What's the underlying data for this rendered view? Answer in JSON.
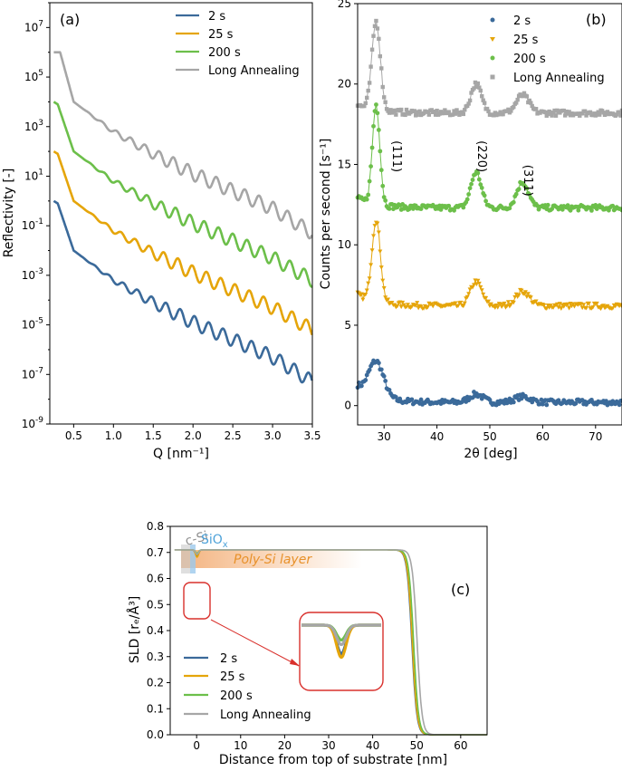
{
  "colors": {
    "s2": "#3b6a9a",
    "s25": "#e5a50a",
    "s200": "#6cbf4a",
    "long": "#a6a6a6",
    "cSi": "#8f8f8f",
    "SiOx": "#4ea2d9",
    "poly": "#f2a76a",
    "zoom": "#d9302c"
  },
  "chart_data": [
    {
      "id": "a",
      "type": "line",
      "panel_label": "(a)",
      "xlabel": "Q [nm⁻¹]",
      "ylabel": "Reflectivity [-]",
      "xlim": [
        0.2,
        3.5
      ],
      "ylim_log10": [
        -9,
        8
      ],
      "yscale": "log",
      "x_ticks": [
        "0.5",
        "1.0",
        "1.5",
        "2.0",
        "2.5",
        "3.0",
        "3.5"
      ],
      "y_tick_labels": [
        {
          "base": "10",
          "exp": "-9"
        },
        {
          "base": "10",
          "exp": "-7"
        },
        {
          "base": "10",
          "exp": "-5"
        },
        {
          "base": "10",
          "exp": "-3"
        },
        {
          "base": "10",
          "exp": "-1"
        },
        {
          "base": "10",
          "exp": "1"
        },
        {
          "base": "10",
          "exp": "3"
        },
        {
          "base": "10",
          "exp": "5"
        },
        {
          "base": "10",
          "exp": "7"
        }
      ],
      "legend": [
        "2 s",
        "25 s",
        "200 s",
        "Long Annealing"
      ],
      "series": [
        {
          "name": "2 s",
          "x": [
            0.25,
            0.3,
            0.5,
            1.0,
            1.5,
            2.0,
            2.5,
            3.0,
            3.5
          ],
          "log10_y": [
            0,
            -0.1,
            -2.0,
            -3.2,
            -4.1,
            -4.9,
            -5.6,
            -6.3,
            -7.3
          ]
        },
        {
          "name": "25 s",
          "x": [
            0.25,
            0.3,
            0.5,
            1.0,
            1.5,
            2.0,
            2.5,
            3.0,
            3.5
          ],
          "log10_y": [
            2.0,
            1.9,
            0.0,
            -1.2,
            -2.1,
            -2.9,
            -3.6,
            -4.3,
            -5.2
          ]
        },
        {
          "name": "200 s",
          "x": [
            0.25,
            0.3,
            0.5,
            1.0,
            1.5,
            2.0,
            2.5,
            3.0,
            3.5
          ],
          "log10_y": [
            4.0,
            3.9,
            2.0,
            0.8,
            -0.1,
            -0.9,
            -1.6,
            -2.3,
            -3.2
          ]
        },
        {
          "name": "Long Annealing",
          "x": [
            0.25,
            0.33,
            0.5,
            1.0,
            1.5,
            2.0,
            2.5,
            3.0,
            3.5
          ],
          "log10_y": [
            6.0,
            6.0,
            4.0,
            2.8,
            1.9,
            1.1,
            0.4,
            -0.3,
            -1.3
          ]
        }
      ]
    },
    {
      "id": "b",
      "type": "scatter",
      "panel_label": "(b)",
      "xlabel": "2θ [deg]",
      "ylabel": "Counts per second [s⁻¹]",
      "xlim": [
        25,
        75
      ],
      "ylim": [
        -1.2,
        25
      ],
      "x_ticks": [
        30,
        40,
        50,
        60,
        70
      ],
      "y_ticks": [
        0,
        5,
        10,
        15,
        20,
        25
      ],
      "legend": [
        "2 s",
        "25 s",
        "200 s",
        "Long Annealing"
      ],
      "peak_labels": [
        {
          "text": "(111)",
          "x": 31.7,
          "y": 15.5
        },
        {
          "text": "(220)",
          "x": 47.8,
          "y": 15.5
        },
        {
          "text": "(311)",
          "x": 56.5,
          "y": 14.0
        }
      ],
      "series": [
        {
          "name": "2 s",
          "baseline": 0.2,
          "shoulder": 1.0,
          "peaks": [
            {
              "x": 28.5,
              "h": 2.2,
              "w": 1.4
            },
            {
              "x": 47.4,
              "h": 0.5,
              "w": 1.3
            },
            {
              "x": 56.2,
              "h": 0.35,
              "w": 1.5
            }
          ]
        },
        {
          "name": "25 s",
          "baseline": 6.2,
          "shoulder": 0.7,
          "peaks": [
            {
              "x": 28.5,
              "h": 5.1,
              "w": 0.8
            },
            {
              "x": 47.4,
              "h": 1.5,
              "w": 1.1
            },
            {
              "x": 56.2,
              "h": 0.9,
              "w": 1.3
            }
          ]
        },
        {
          "name": "200 s",
          "baseline": 12.3,
          "shoulder": 0.6,
          "peaks": [
            {
              "x": 28.5,
              "h": 6.2,
              "w": 0.7
            },
            {
              "x": 47.4,
              "h": 2.2,
              "w": 1.0
            },
            {
              "x": 56.2,
              "h": 1.6,
              "w": 1.1
            }
          ]
        },
        {
          "name": "Long Annealing",
          "baseline": 18.2,
          "shoulder": 0.5,
          "peaks": [
            {
              "x": 28.5,
              "h": 5.5,
              "w": 0.8
            },
            {
              "x": 47.4,
              "h": 1.8,
              "w": 1.0
            },
            {
              "x": 56.2,
              "h": 1.1,
              "w": 1.2
            }
          ]
        }
      ]
    },
    {
      "id": "c",
      "type": "line",
      "panel_label": "(c)",
      "xlabel": "Distance from top of substrate [nm]",
      "ylabel": "SLD [rₑ/Å³]",
      "xlim": [
        -6,
        66
      ],
      "ylim": [
        0,
        0.8
      ],
      "x_ticks": [
        0,
        10,
        20,
        30,
        40,
        50,
        60
      ],
      "y_ticks": [
        "0.0",
        "0.1",
        "0.2",
        "0.3",
        "0.4",
        "0.5",
        "0.6",
        "0.7",
        "0.8"
      ],
      "plateau": 0.71,
      "legend": [
        "2 s",
        "25 s",
        "200 s",
        "Long Annealing"
      ],
      "layers": {
        "c_si": "c-Si",
        "siox_base": "SiO",
        "siox_sub": "x",
        "poly": "Poly-Si layer"
      },
      "series": [
        {
          "name": "2 s",
          "edge_nm": 48.9,
          "dip": 0.685
        },
        {
          "name": "25 s",
          "edge_nm": 49.0,
          "dip": 0.682
        },
        {
          "name": "200 s",
          "edge_nm": 49.3,
          "dip": 0.697
        },
        {
          "name": "Long Annealing",
          "edge_nm": 50.1,
          "dip": 0.693
        }
      ]
    }
  ]
}
